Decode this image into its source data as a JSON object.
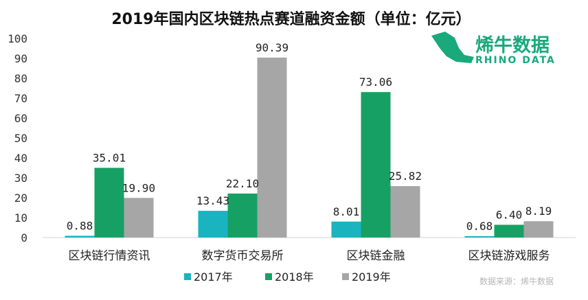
{
  "chart_data": {
    "type": "bar",
    "title": "2019年国内区块链热点赛道融资金额（单位：亿元）",
    "categories": [
      "区块链行情资讯",
      "数字货币交易所",
      "区块链金融",
      "区块链游戏服务"
    ],
    "series": [
      {
        "name": "2017年",
        "color": "#1ab4c1",
        "values": [
          0.88,
          13.43,
          8.01,
          0.68
        ],
        "labels": [
          "0.88",
          "13.43",
          "8.01",
          "0.68"
        ]
      },
      {
        "name": "2018年",
        "color": "#17a063",
        "values": [
          35.01,
          22.1,
          73.06,
          6.4
        ],
        "labels": [
          "35.01",
          "22.10",
          "73.06",
          "6.40"
        ]
      },
      {
        "name": "2019年",
        "color": "#a6a6a6",
        "values": [
          19.9,
          90.39,
          25.82,
          8.19
        ],
        "labels": [
          "19.90",
          "90.39",
          "25.82",
          "8.19"
        ]
      }
    ],
    "ylim": [
      0,
      100
    ],
    "yticks": [
      0,
      10,
      20,
      30,
      40,
      50,
      60,
      70,
      80,
      90,
      100
    ],
    "grid": false,
    "legend": "bottom"
  },
  "brand": {
    "name": "烯牛数据",
    "subtitle": "RHINO DATA",
    "color": "#19a97b"
  },
  "source": "数据来源：烯牛数据"
}
